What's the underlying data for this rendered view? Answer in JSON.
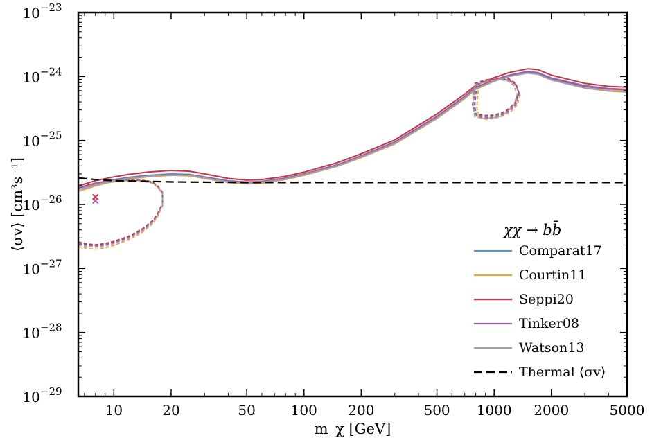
{
  "chart_data": {
    "type": "line",
    "xscale": "log",
    "yscale": "log",
    "xlim": [
      6.5,
      5000
    ],
    "ylim": [
      1e-29,
      1e-23
    ],
    "xlabel": "m_χ [GeV]",
    "ylabel": "⟨σv⟩ [cm³s⁻¹]",
    "x_ticks": [
      10,
      20,
      50,
      100,
      200,
      500,
      1000,
      2000,
      5000
    ],
    "x_tick_labels": [
      "10",
      "20",
      "50",
      "100",
      "200",
      "500",
      "1000",
      "2000",
      "5000"
    ],
    "y_ticks": [
      1e-29,
      1e-28,
      1e-27,
      1e-26,
      1e-25,
      1e-24,
      1e-23
    ],
    "y_tick_labels": [
      "10−29",
      "10−28",
      "10−27",
      "10−26",
      "10−25",
      "10−24",
      "10−23"
    ],
    "legend_title": "χχ → bb̄",
    "legend_position": "lower-right",
    "series": [
      {
        "name": "Comparat17",
        "color": "#5b8fd9",
        "solid_x": [
          6.5,
          8,
          10,
          12,
          15,
          20,
          25,
          30,
          40,
          50,
          60,
          80,
          100,
          150,
          200,
          300,
          500,
          700,
          800,
          1000,
          1200,
          1500,
          1700,
          2000,
          3000,
          4000,
          5000
        ],
        "solid_y": [
          1.85e-26,
          2.15e-26,
          2.45e-26,
          2.65e-26,
          2.85e-26,
          3e-26,
          2.95e-26,
          2.7e-26,
          2.35e-26,
          2.25e-26,
          2.3e-26,
          2.6e-26,
          3e-26,
          4.2e-26,
          5.8e-26,
          9.5e-26,
          2.4e-25,
          4.9e-25,
          6.8e-25,
          8.9e-25,
          1.05e-24,
          1.2e-24,
          1.15e-24,
          9.5e-25,
          7.2e-25,
          6.5e-25,
          6.3e-25
        ],
        "dashed_x": [
          6.5,
          7,
          8,
          9,
          10,
          12,
          14,
          16,
          17,
          18,
          18,
          17,
          16,
          14,
          12,
          10,
          8,
          7
        ],
        "dashed_y": [
          2.5e-27,
          2.4e-27,
          2.3e-27,
          2.4e-27,
          2.6e-27,
          3.1e-27,
          4e-27,
          5.5e-27,
          7e-27,
          1e-26,
          1.5e-26,
          1.9e-26,
          2.2e-26,
          2.35e-26,
          2.4e-26,
          2.3e-26,
          2.1e-26,
          1.9e-26
        ],
        "island_x": [
          800,
          900,
          1000,
          1100,
          1200,
          1300,
          1350,
          1300,
          1200,
          1100,
          1000,
          900,
          800,
          780,
          800
        ],
        "island_y": [
          7.5e-25,
          8.5e-25,
          9e-25,
          9.2e-25,
          8.8e-25,
          7.5e-25,
          5.5e-25,
          3.8e-25,
          3e-25,
          2.6e-25,
          2.4e-25,
          2.35e-25,
          2.5e-25,
          3.5e-25,
          7.5e-25
        ]
      },
      {
        "name": "Courtin11",
        "color": "#f4a23b",
        "solid_x": [
          6.5,
          8,
          10,
          12,
          15,
          20,
          25,
          30,
          40,
          50,
          60,
          80,
          100,
          150,
          200,
          300,
          500,
          700,
          800,
          1000,
          1200,
          1500,
          1700,
          2000,
          3000,
          4000,
          5000
        ],
        "solid_y": [
          1.6e-26,
          1.95e-26,
          2.3e-26,
          2.5e-26,
          2.7e-26,
          2.85e-26,
          2.8e-26,
          2.55e-26,
          2.2e-26,
          2.1e-26,
          2.15e-26,
          2.45e-26,
          2.85e-26,
          3.95e-26,
          5.4e-26,
          8.8e-26,
          2.2e-25,
          4.5e-25,
          6.3e-25,
          8.4e-25,
          1e-24,
          1.15e-24,
          1.1e-24,
          9.1e-25,
          6.9e-25,
          6.2e-25,
          6e-25
        ],
        "dashed_x": [
          6.5,
          7,
          8,
          9,
          10,
          12,
          14,
          16,
          17,
          18,
          18,
          17,
          16,
          14,
          12,
          10,
          8,
          7
        ],
        "dashed_y": [
          2.2e-27,
          2.1e-27,
          2e-27,
          2.1e-27,
          2.3e-27,
          2.8e-27,
          3.6e-27,
          5e-27,
          6.5e-27,
          9.5e-27,
          1.45e-26,
          1.85e-26,
          2.15e-26,
          2.3e-26,
          2.35e-26,
          2.25e-26,
          2.05e-26,
          1.85e-26
        ],
        "island_x": [
          830,
          900,
          1000,
          1100,
          1200,
          1300,
          1370,
          1320,
          1220,
          1100,
          1000,
          900,
          830,
          810,
          830
        ],
        "island_y": [
          7.2e-25,
          8.2e-25,
          8.8e-25,
          9e-25,
          8.6e-25,
          7.2e-25,
          5.2e-25,
          3.6e-25,
          2.8e-25,
          2.4e-25,
          2.2e-25,
          2.15e-25,
          2.3e-25,
          3.3e-25,
          7.2e-25
        ]
      },
      {
        "name": "Seppi20",
        "color": "#d62d3f",
        "solid_x": [
          6.5,
          8,
          10,
          12,
          15,
          20,
          25,
          30,
          40,
          50,
          60,
          80,
          100,
          150,
          200,
          300,
          500,
          700,
          800,
          1000,
          1200,
          1500,
          1700,
          2000,
          3000,
          4000,
          5000
        ],
        "solid_y": [
          1.95e-26,
          2.35e-26,
          2.7e-26,
          2.95e-26,
          3.2e-26,
          3.4e-26,
          3.3e-26,
          3e-26,
          2.55e-26,
          2.4e-26,
          2.45e-26,
          2.75e-26,
          3.2e-26,
          4.5e-26,
          6.2e-26,
          1.02e-25,
          2.6e-25,
          5.3e-25,
          7.3e-25,
          9.6e-25,
          1.15e-24,
          1.32e-24,
          1.28e-24,
          1.05e-24,
          7.8e-25,
          7e-25,
          6.8e-25
        ],
        "dashed_x": [
          6.5,
          7,
          8,
          9,
          10,
          12,
          14,
          16,
          17,
          18,
          18,
          17,
          16,
          14,
          12,
          10,
          8,
          7
        ],
        "dashed_y": [
          2.6e-27,
          2.45e-27,
          2.35e-27,
          2.45e-27,
          2.65e-27,
          3.2e-27,
          4.1e-27,
          5.6e-27,
          7.2e-27,
          1.05e-26,
          1.55e-26,
          1.95e-26,
          2.25e-26,
          2.4e-26,
          2.45e-26,
          2.35e-26,
          2.15e-26,
          1.95e-26
        ],
        "island_x": [
          790,
          900,
          1000,
          1100,
          1200,
          1300,
          1340,
          1290,
          1190,
          1100,
          1000,
          900,
          790,
          770,
          790
        ],
        "island_y": [
          7.8e-25,
          8.8e-25,
          9.3e-25,
          9.5e-25,
          9.1e-25,
          7.8e-25,
          5.7e-25,
          3.9e-25,
          3.1e-25,
          2.7e-25,
          2.5e-25,
          2.45e-25,
          2.6e-25,
          3.6e-25,
          7.8e-25
        ]
      },
      {
        "name": "Tinker08",
        "color": "#9b59a6",
        "solid_x": [
          6.5,
          8,
          10,
          12,
          15,
          20,
          25,
          30,
          40,
          50,
          60,
          80,
          100,
          150,
          200,
          300,
          500,
          700,
          800,
          1000,
          1200,
          1500,
          1700,
          2000,
          3000,
          4000,
          5000
        ],
        "solid_y": [
          1.8e-26,
          2.1e-26,
          2.4e-26,
          2.6e-26,
          2.8e-26,
          2.95e-26,
          2.9e-26,
          2.65e-26,
          2.3e-26,
          2.2e-26,
          2.25e-26,
          2.55e-26,
          2.95e-26,
          4.1e-26,
          5.7e-26,
          9.3e-26,
          2.35e-25,
          4.8e-25,
          6.7e-25,
          8.8e-25,
          1.04e-24,
          1.18e-24,
          1.13e-24,
          9.3e-25,
          7e-25,
          6.4e-25,
          6.2e-25
        ],
        "dashed_x": [
          6.5,
          7,
          8,
          9,
          10,
          12,
          14,
          16,
          17,
          18,
          18,
          17,
          16,
          14,
          12,
          10,
          8,
          7
        ],
        "dashed_y": [
          2.45e-27,
          2.35e-27,
          2.25e-27,
          2.35e-27,
          2.55e-27,
          3.05e-27,
          3.9e-27,
          5.4e-27,
          6.9e-27,
          9.9e-27,
          1.5e-26,
          1.9e-26,
          2.2e-26,
          2.35e-26,
          2.4e-26,
          2.3e-26,
          2.1e-26,
          1.9e-26
        ],
        "island_x": [
          810,
          900,
          1000,
          1100,
          1200,
          1300,
          1355,
          1305,
          1205,
          1100,
          1000,
          900,
          810,
          790,
          810
        ],
        "island_y": [
          7.4e-25,
          8.4e-25,
          8.9e-25,
          9.1e-25,
          8.7e-25,
          7.4e-25,
          5.4e-25,
          3.7e-25,
          2.9e-25,
          2.5e-25,
          2.3e-25,
          2.25e-25,
          2.4e-25,
          3.4e-25,
          7.4e-25
        ]
      },
      {
        "name": "Watson13",
        "color": "#a0a0a0",
        "solid_x": [
          6.5,
          8,
          10,
          12,
          15,
          20,
          25,
          30,
          40,
          50,
          60,
          80,
          100,
          150,
          200,
          300,
          500,
          700,
          800,
          1000,
          1200,
          1500,
          1700,
          2000,
          3000,
          4000,
          5000
        ],
        "solid_y": [
          1.7e-26,
          2e-26,
          2.35e-26,
          2.55e-26,
          2.75e-26,
          2.9e-26,
          2.85e-26,
          2.6e-26,
          2.25e-26,
          2.15e-26,
          2.2e-26,
          2.5e-26,
          2.9e-26,
          4e-26,
          5.5e-26,
          9e-26,
          2.25e-25,
          4.6e-25,
          6.4e-25,
          8.5e-25,
          1e-24,
          1.13e-24,
          1.08e-24,
          8.8e-25,
          6.6e-25,
          5.9e-25,
          5.7e-25
        ],
        "dashed_x": [
          6.5,
          7,
          8,
          9,
          10,
          12,
          14,
          16,
          17,
          18,
          18,
          17,
          16,
          14,
          12,
          10,
          8,
          7
        ],
        "dashed_y": [
          2.35e-27,
          2.25e-27,
          2.15e-27,
          2.25e-27,
          2.45e-27,
          2.95e-27,
          3.8e-27,
          5.2e-27,
          6.7e-27,
          9.7e-27,
          1.48e-26,
          1.88e-26,
          2.18e-26,
          2.33e-26,
          2.38e-26,
          2.28e-26,
          2.08e-26,
          1.88e-26
        ],
        "island_x": [
          790,
          880,
          980,
          1080,
          1180,
          1270,
          1320,
          1270,
          1170,
          1080,
          980,
          880,
          790,
          775,
          790
        ],
        "island_y": [
          7.2e-25,
          8.2e-25,
          8.7e-25,
          8.9e-25,
          8.5e-25,
          7.2e-25,
          5.2e-25,
          3.6e-25,
          2.8e-25,
          2.4e-25,
          2.25e-25,
          2.2e-25,
          2.35e-25,
          3.3e-25,
          7.2e-25
        ]
      }
    ],
    "thermal": {
      "name": "Thermal ⟨σv⟩",
      "color": "#000000",
      "x": [
        6.5,
        8,
        10,
        15,
        20,
        50,
        100,
        1000,
        5000
      ],
      "y": [
        2.6e-26,
        2.45e-26,
        2.35e-26,
        2.3e-26,
        2.25e-26,
        2.2e-26,
        2.2e-26,
        2.2e-26,
        2.2e-26
      ]
    },
    "markers": [
      {
        "x": 8,
        "y": 1.3e-26,
        "color": "#d62d3f"
      },
      {
        "x": 8,
        "y": 1.15e-26,
        "color": "#9b59a6"
      }
    ]
  }
}
